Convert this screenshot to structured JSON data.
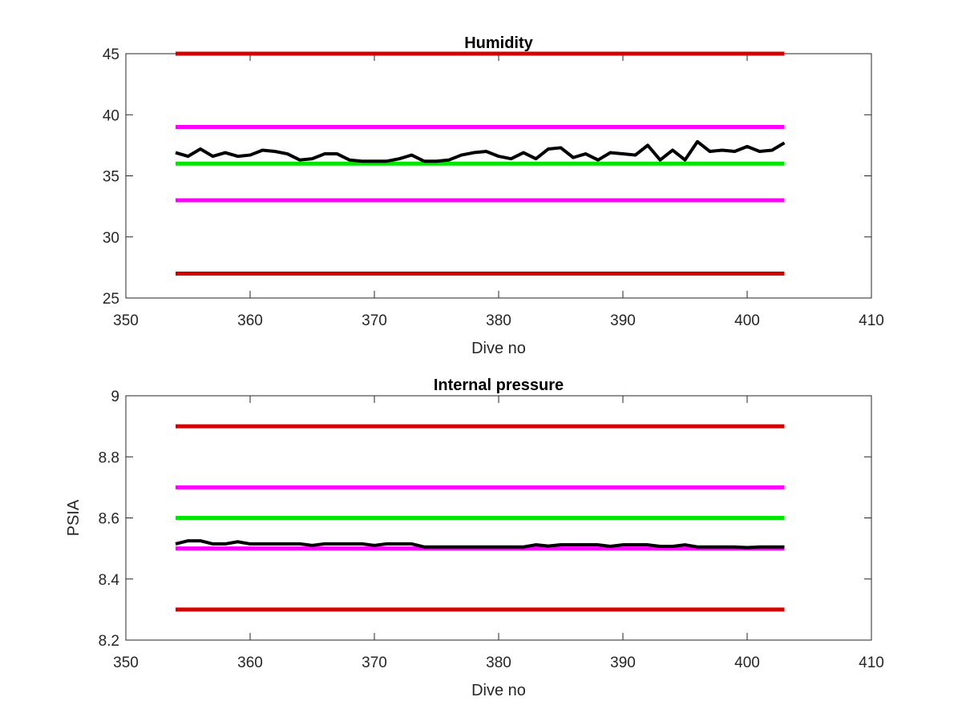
{
  "colors": {
    "limit_red": "#d40000",
    "limit_magenta": "#ff00ff",
    "target_green": "#00e600",
    "data_black": "#000000",
    "axis": "#262626"
  },
  "chart_data": [
    {
      "type": "line",
      "title": "Humidity",
      "xlabel": "Dive no",
      "ylabel": "",
      "xlim": [
        350,
        410
      ],
      "ylim": [
        25,
        45
      ],
      "xticks": [
        350,
        360,
        370,
        380,
        390,
        400,
        410
      ],
      "yticks": [
        25,
        30,
        35,
        40,
        45
      ],
      "grid": false,
      "reference_lines": [
        {
          "y": 45,
          "x": [
            354,
            403
          ],
          "color": "limit_red"
        },
        {
          "y": 39,
          "x": [
            354,
            403
          ],
          "color": "limit_magenta"
        },
        {
          "y": 36,
          "x": [
            354,
            403
          ],
          "color": "target_green"
        },
        {
          "y": 33,
          "x": [
            354,
            403
          ],
          "color": "limit_magenta"
        },
        {
          "y": 27,
          "x": [
            354,
            403
          ],
          "color": "limit_red"
        }
      ],
      "series": [
        {
          "color": "data_black",
          "x": [
            354,
            355,
            356,
            357,
            358,
            359,
            360,
            361,
            362,
            363,
            364,
            365,
            366,
            367,
            368,
            369,
            370,
            371,
            372,
            373,
            374,
            375,
            376,
            377,
            378,
            379,
            380,
            381,
            382,
            383,
            384,
            385,
            386,
            387,
            388,
            389,
            390,
            391,
            392,
            393,
            394,
            395,
            396,
            397,
            398,
            399,
            400,
            401,
            402,
            403
          ],
          "values": [
            36.9,
            36.6,
            37.2,
            36.6,
            36.9,
            36.6,
            36.7,
            37.1,
            37.0,
            36.8,
            36.3,
            36.4,
            36.8,
            36.8,
            36.3,
            36.2,
            36.2,
            36.2,
            36.4,
            36.7,
            36.2,
            36.2,
            36.3,
            36.7,
            36.9,
            37.0,
            36.6,
            36.4,
            36.9,
            36.4,
            37.2,
            37.3,
            36.5,
            36.8,
            36.3,
            36.9,
            36.8,
            36.7,
            37.5,
            36.3,
            37.1,
            36.3,
            37.8,
            37.0,
            37.1,
            37.0,
            37.4,
            37.0,
            37.1,
            37.7
          ]
        }
      ]
    },
    {
      "type": "line",
      "title": "Internal pressure",
      "xlabel": "Dive no",
      "ylabel": "PSIA",
      "xlim": [
        350,
        410
      ],
      "ylim": [
        8.2,
        9
      ],
      "xticks": [
        350,
        360,
        370,
        380,
        390,
        400,
        410
      ],
      "yticks": [
        "8.2",
        "8.4",
        "8.6",
        "8.8",
        "9"
      ],
      "grid": false,
      "reference_lines": [
        {
          "y": 8.9,
          "x": [
            354,
            403
          ],
          "color": "limit_red"
        },
        {
          "y": 8.7,
          "x": [
            354,
            403
          ],
          "color": "limit_magenta"
        },
        {
          "y": 8.6,
          "x": [
            354,
            403
          ],
          "color": "target_green"
        },
        {
          "y": 8.5,
          "x": [
            354,
            403
          ],
          "color": "limit_magenta"
        },
        {
          "y": 8.3,
          "x": [
            354,
            403
          ],
          "color": "limit_red"
        }
      ],
      "series": [
        {
          "color": "data_black",
          "x": [
            354,
            355,
            356,
            357,
            358,
            359,
            360,
            361,
            362,
            363,
            364,
            365,
            366,
            367,
            368,
            369,
            370,
            371,
            372,
            373,
            374,
            375,
            376,
            377,
            378,
            379,
            380,
            381,
            382,
            383,
            384,
            385,
            386,
            387,
            388,
            389,
            390,
            391,
            392,
            393,
            394,
            395,
            396,
            397,
            398,
            399,
            400,
            401,
            402,
            403
          ],
          "values": [
            8.515,
            8.525,
            8.525,
            8.515,
            8.515,
            8.522,
            8.515,
            8.515,
            8.515,
            8.515,
            8.515,
            8.51,
            8.515,
            8.515,
            8.515,
            8.515,
            8.51,
            8.515,
            8.515,
            8.515,
            8.505,
            8.505,
            8.505,
            8.505,
            8.505,
            8.505,
            8.505,
            8.505,
            8.505,
            8.512,
            8.508,
            8.512,
            8.512,
            8.512,
            8.512,
            8.507,
            8.512,
            8.512,
            8.512,
            8.507,
            8.507,
            8.512,
            8.505,
            8.505,
            8.505,
            8.505,
            8.503,
            8.505,
            8.505,
            8.505
          ]
        }
      ]
    }
  ]
}
